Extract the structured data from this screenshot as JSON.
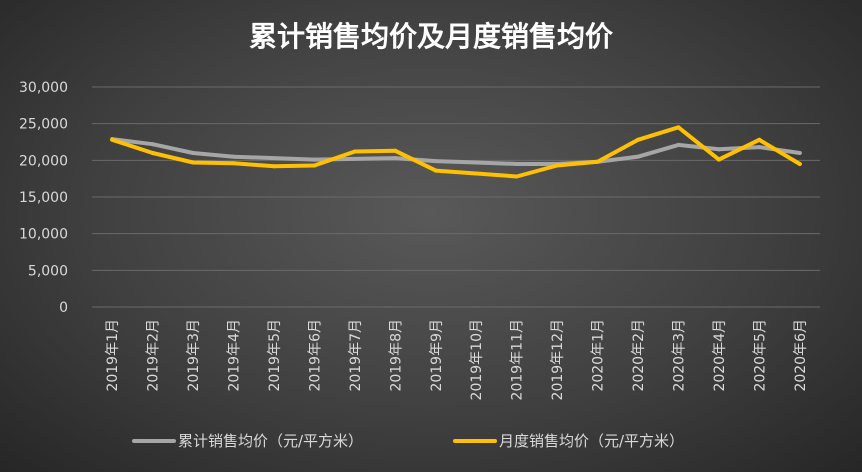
{
  "chart_data": {
    "type": "line",
    "title": "累计销售均价及月度销售均价",
    "categories": [
      "2019年1月",
      "2019年2月",
      "2019年3月",
      "2019年4月",
      "2019年5月",
      "2019年6月",
      "2019年7月",
      "2019年8月",
      "2019年9月",
      "2019年10月",
      "2019年11月",
      "2019年12月",
      "2020年1月",
      "2020年2月",
      "2020年3月",
      "2020年4月",
      "2020年5月",
      "2020年6月"
    ],
    "series": [
      {
        "name": "累计销售均价（元/平方米）",
        "color": "#a6a6a6",
        "values": [
          22900,
          22200,
          21000,
          20500,
          20300,
          20100,
          20200,
          20300,
          19900,
          19700,
          19500,
          19500,
          19800,
          20500,
          22100,
          21500,
          21800,
          21000
        ]
      },
      {
        "name": "月度销售均价（元/平方米）",
        "color": "#ffc000",
        "values": [
          22800,
          21000,
          19700,
          19600,
          19200,
          19300,
          21200,
          21300,
          18600,
          18200,
          17800,
          19300,
          19800,
          22800,
          24500,
          20100,
          22800,
          19500
        ]
      }
    ],
    "y_ticks": [
      "0",
      "5,000",
      "10,000",
      "15,000",
      "20,000",
      "25,000",
      "30,000"
    ],
    "ylim": [
      0,
      30000
    ],
    "grid": "horizontal",
    "legend_position": "bottom"
  }
}
